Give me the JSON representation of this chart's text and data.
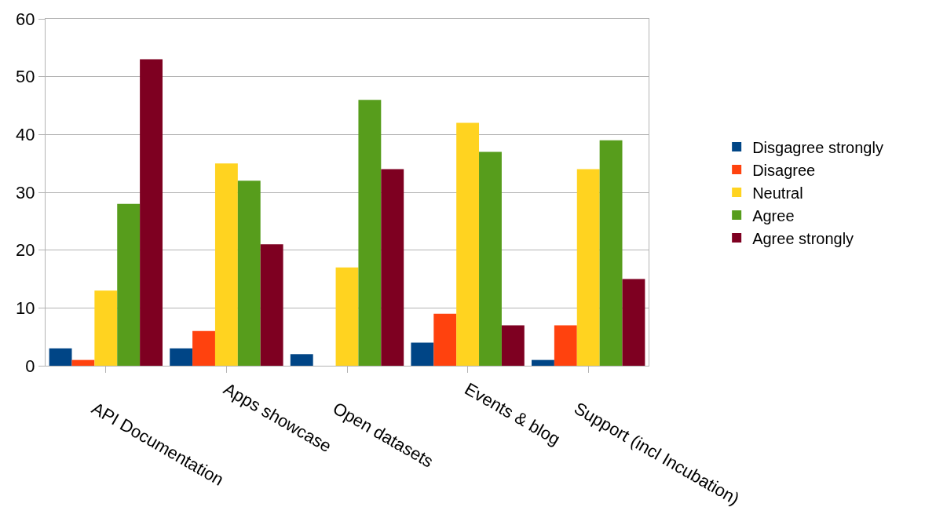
{
  "chart_data": {
    "type": "bar",
    "categories": [
      "API Documentation",
      "Apps showcase",
      "Open datasets",
      "Events & blog",
      "Support (incl Incubation)"
    ],
    "series": [
      {
        "name": "Disgagree strongly",
        "color": "#004586",
        "values": [
          3,
          3,
          2,
          4,
          1
        ]
      },
      {
        "name": "Disagree",
        "color": "#ff420e",
        "values": [
          1,
          6,
          0,
          9,
          7
        ]
      },
      {
        "name": "Neutral",
        "color": "#ffd320",
        "values": [
          13,
          35,
          17,
          42,
          34
        ]
      },
      {
        "name": "Agree",
        "color": "#579d1c",
        "values": [
          28,
          32,
          46,
          37,
          39
        ]
      },
      {
        "name": "Agree strongly",
        "color": "#7e0021",
        "values": [
          53,
          21,
          34,
          7,
          15
        ]
      }
    ],
    "ylim": [
      0,
      60
    ],
    "yticks": [
      0,
      10,
      20,
      30,
      40,
      50,
      60
    ],
    "grid": "y",
    "legend": "right"
  }
}
